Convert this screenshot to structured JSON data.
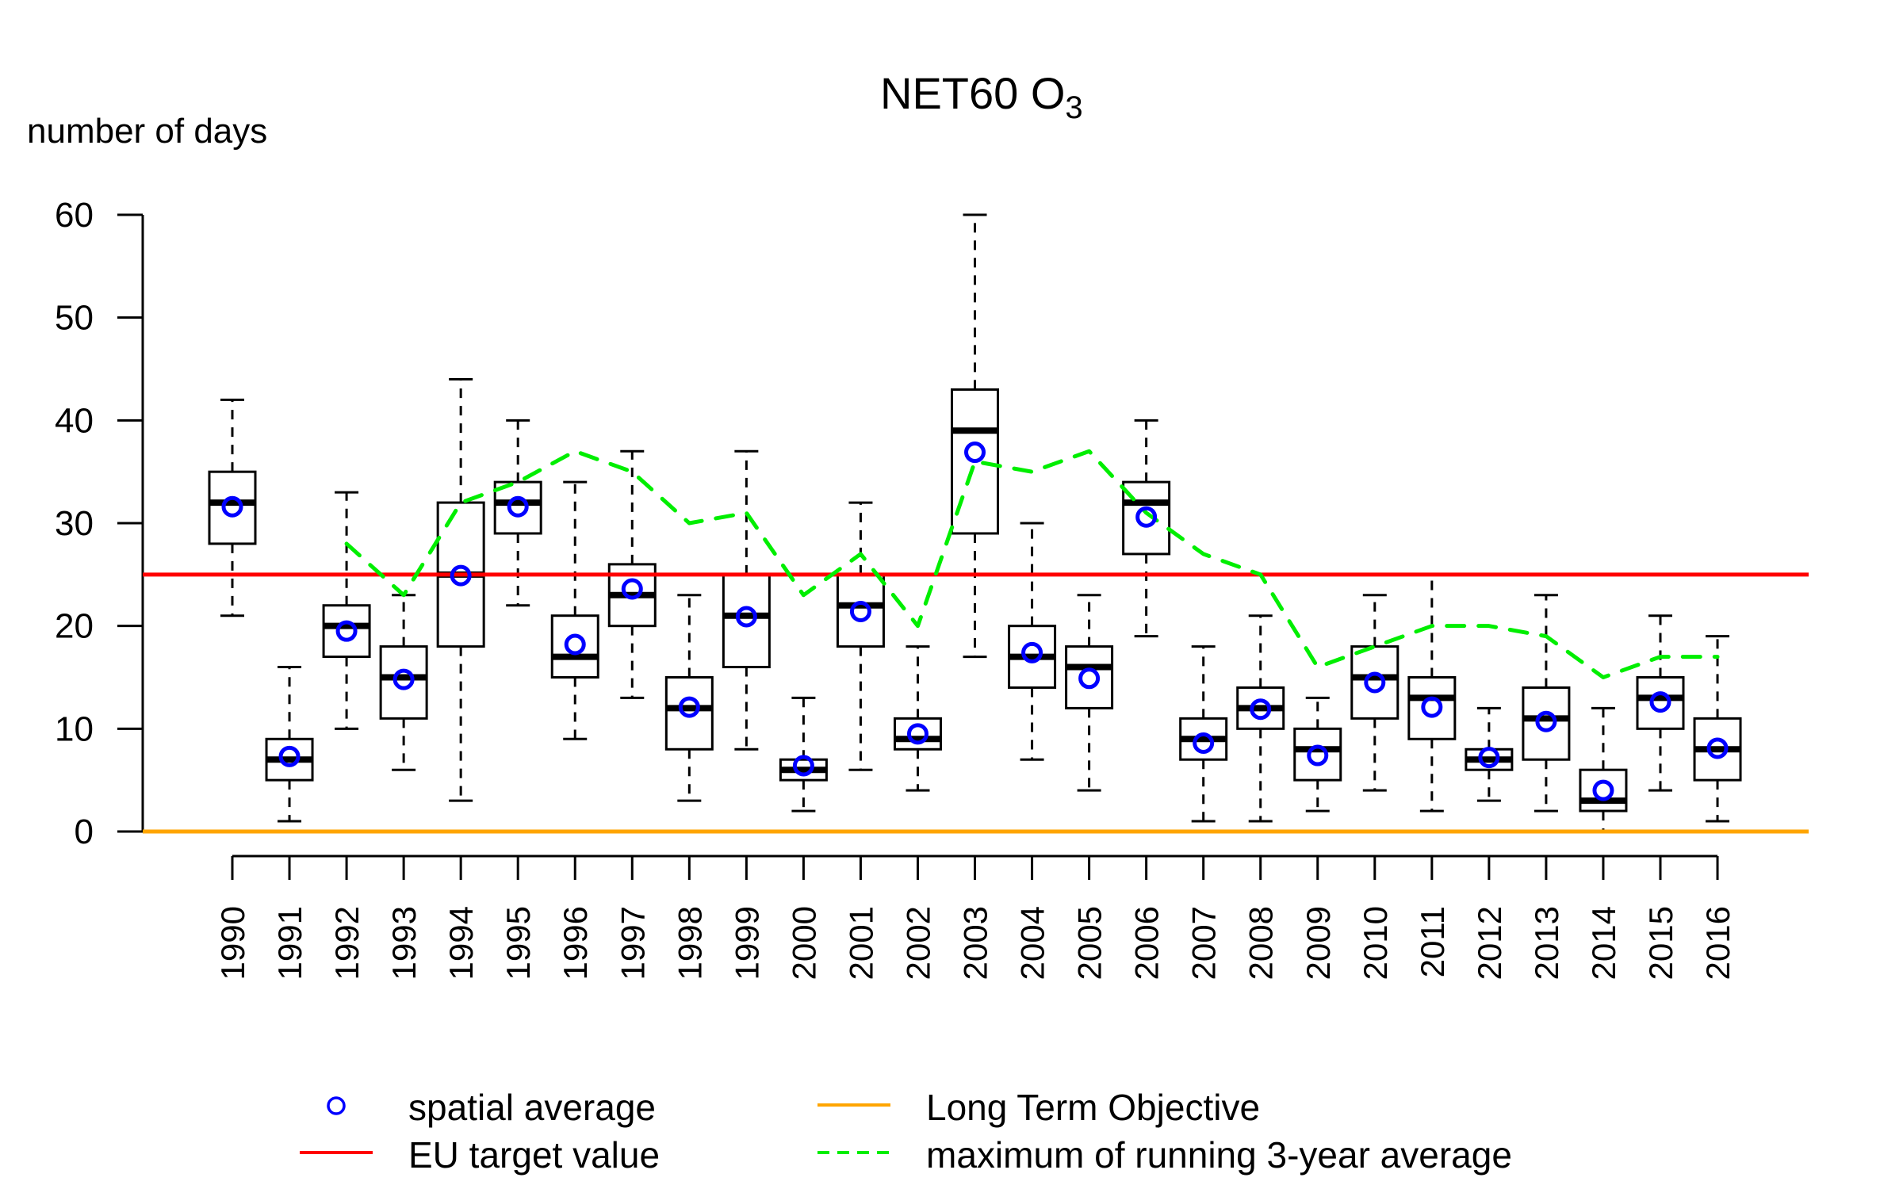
{
  "chart_data": {
    "type": "boxplot",
    "title": "NET60 O",
    "title_subscript": "3",
    "ylabel": "number of days",
    "xlabel": "",
    "ylim": [
      0,
      60
    ],
    "yticks": [
      0,
      10,
      20,
      30,
      40,
      50,
      60
    ],
    "grid": false,
    "categories": [
      "1990",
      "1991",
      "1992",
      "1993",
      "1994",
      "1995",
      "1996",
      "1997",
      "1998",
      "1999",
      "2000",
      "2001",
      "2002",
      "2003",
      "2004",
      "2005",
      "2006",
      "2007",
      "2008",
      "2009",
      "2010",
      "2011",
      "2012",
      "2013",
      "2014",
      "2015",
      "2016"
    ],
    "boxes": [
      {
        "year": "1990",
        "whisker_low": 21,
        "q1": 28,
        "median": 32,
        "q3": 35,
        "whisker_high": 42
      },
      {
        "year": "1991",
        "whisker_low": 1,
        "q1": 5,
        "median": 7,
        "q3": 9,
        "whisker_high": 16
      },
      {
        "year": "1992",
        "whisker_low": 10,
        "q1": 17,
        "median": 20,
        "q3": 22,
        "whisker_high": 33
      },
      {
        "year": "1993",
        "whisker_low": 6,
        "q1": 11,
        "median": 15,
        "q3": 18,
        "whisker_high": 23
      },
      {
        "year": "1994",
        "whisker_low": 3,
        "q1": 18,
        "median": 25,
        "q3": 32,
        "whisker_high": 44
      },
      {
        "year": "1995",
        "whisker_low": 22,
        "q1": 29,
        "median": 32,
        "q3": 34,
        "whisker_high": 40
      },
      {
        "year": "1996",
        "whisker_low": 9,
        "q1": 15,
        "median": 17,
        "q3": 21,
        "whisker_high": 34
      },
      {
        "year": "1997",
        "whisker_low": 13,
        "q1": 20,
        "median": 23,
        "q3": 26,
        "whisker_high": 37
      },
      {
        "year": "1998",
        "whisker_low": 3,
        "q1": 8,
        "median": 12,
        "q3": 15,
        "whisker_high": 23
      },
      {
        "year": "1999",
        "whisker_low": 8,
        "q1": 16,
        "median": 21,
        "q3": 25,
        "whisker_high": 37
      },
      {
        "year": "2000",
        "whisker_low": 2,
        "q1": 5,
        "median": 6,
        "q3": 7,
        "whisker_high": 13
      },
      {
        "year": "2001",
        "whisker_low": 6,
        "q1": 18,
        "median": 22,
        "q3": 25,
        "whisker_high": 32
      },
      {
        "year": "2002",
        "whisker_low": 4,
        "q1": 8,
        "median": 9,
        "q3": 11,
        "whisker_high": 18
      },
      {
        "year": "2003",
        "whisker_low": 17,
        "q1": 29,
        "median": 39,
        "q3": 43,
        "whisker_high": 60
      },
      {
        "year": "2004",
        "whisker_low": 7,
        "q1": 14,
        "median": 17,
        "q3": 20,
        "whisker_high": 30
      },
      {
        "year": "2005",
        "whisker_low": 4,
        "q1": 12,
        "median": 16,
        "q3": 18,
        "whisker_high": 23
      },
      {
        "year": "2006",
        "whisker_low": 19,
        "q1": 27,
        "median": 32,
        "q3": 34,
        "whisker_high": 40
      },
      {
        "year": "2007",
        "whisker_low": 1,
        "q1": 7,
        "median": 9,
        "q3": 11,
        "whisker_high": 18
      },
      {
        "year": "2008",
        "whisker_low": 1,
        "q1": 10,
        "median": 12,
        "q3": 14,
        "whisker_high": 21
      },
      {
        "year": "2009",
        "whisker_low": 2,
        "q1": 5,
        "median": 8,
        "q3": 10,
        "whisker_high": 13
      },
      {
        "year": "2010",
        "whisker_low": 4,
        "q1": 11,
        "median": 15,
        "q3": 18,
        "whisker_high": 23
      },
      {
        "year": "2011",
        "whisker_low": 2,
        "q1": 9,
        "median": 13,
        "q3": 15,
        "whisker_high": 25
      },
      {
        "year": "2012",
        "whisker_low": 3,
        "q1": 6,
        "median": 7,
        "q3": 8,
        "whisker_high": 12
      },
      {
        "year": "2013",
        "whisker_low": 2,
        "q1": 7,
        "median": 11,
        "q3": 14,
        "whisker_high": 23
      },
      {
        "year": "2014",
        "whisker_low": 0,
        "q1": 2,
        "median": 3,
        "q3": 6,
        "whisker_high": 12
      },
      {
        "year": "2015",
        "whisker_low": 4,
        "q1": 10,
        "median": 13,
        "q3": 15,
        "whisker_high": 21
      },
      {
        "year": "2016",
        "whisker_low": 1,
        "q1": 5,
        "median": 8,
        "q3": 11,
        "whisker_high": 19
      }
    ],
    "series": [
      {
        "name": "spatial average",
        "kind": "points",
        "color": "#0000ff",
        "values": [
          31.6,
          7.3,
          19.5,
          14.8,
          24.9,
          31.6,
          18.2,
          23.6,
          12.1,
          20.9,
          6.4,
          21.4,
          9.5,
          36.9,
          17.4,
          14.9,
          30.6,
          8.6,
          11.9,
          7.4,
          14.5,
          12.1,
          7.2,
          10.7,
          4.0,
          12.6,
          8.1
        ]
      },
      {
        "name": "maximum of running 3-year average",
        "kind": "dashed-line",
        "color": "#00ee00",
        "values": [
          null,
          null,
          28,
          23,
          32,
          34,
          37,
          35,
          30,
          31,
          23,
          27,
          20,
          36,
          35,
          37,
          31,
          27,
          25,
          16,
          18,
          20,
          20,
          19,
          15,
          17,
          17
        ]
      }
    ],
    "reference_lines": [
      {
        "name": "EU target value",
        "value": 25,
        "color": "#ff0000"
      },
      {
        "name": "Long Term Objective",
        "value": 0,
        "color": "#ffa500"
      }
    ],
    "legend": {
      "placement": "bottom",
      "entries": [
        {
          "label": "spatial average",
          "symbol": "circle",
          "color": "#0000ff"
        },
        {
          "label": "Long Term Objective",
          "symbol": "line",
          "color": "#ffa500"
        },
        {
          "label": "EU target value",
          "symbol": "line",
          "color": "#ff0000"
        },
        {
          "label": "maximum of running 3-year average",
          "symbol": "dashed-line",
          "color": "#00ee00"
        }
      ]
    }
  }
}
